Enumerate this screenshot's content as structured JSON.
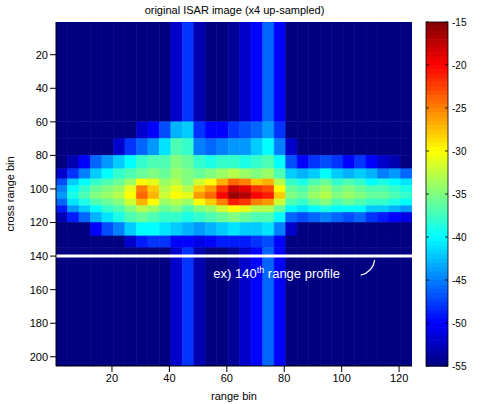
{
  "chart_data": {
    "type": "heatmap",
    "title": "original ISAR image (x4 up-sampled)",
    "x_label": "range bin",
    "y_label": "cross range bin",
    "xlim": [
      0.5,
      124.5
    ],
    "ylim": [
      0.5,
      205.5
    ],
    "xticks": [
      20,
      40,
      60,
      80,
      100,
      120
    ],
    "yticks": [
      20,
      40,
      60,
      80,
      100,
      120,
      140,
      160,
      180,
      200
    ],
    "x_edges": [
      0.5,
      4.5,
      8.5,
      12.5,
      16.5,
      20.5,
      24.5,
      28.5,
      32.5,
      36.5,
      40.5,
      44.5,
      48.5,
      52.5,
      56.5,
      60.5,
      64.5,
      68.5,
      72.5,
      76.5,
      80.5,
      84.5,
      88.5,
      92.5,
      96.5,
      100.5,
      104.5,
      108.5,
      112.5,
      116.5,
      120.5,
      124.5
    ],
    "y_edges": [
      0.5,
      60,
      70,
      80,
      88,
      94,
      98,
      102,
      106,
      110,
      114,
      120,
      128,
      135,
      205.5
    ],
    "cells": [
      [
        -55,
        -55,
        -55,
        -55,
        -55,
        -55,
        -55,
        -55,
        -55,
        -55,
        -52,
        -48,
        -53,
        -55,
        -55,
        -54,
        -52,
        -50,
        -46,
        -50,
        -55,
        -55,
        -55,
        -55,
        -55,
        -55,
        -55,
        -55,
        -55,
        -55,
        -55
      ],
      [
        -55,
        -55,
        -55,
        -55,
        -55,
        -55,
        -55,
        -52,
        -50,
        -47,
        -43,
        -42,
        -48,
        -50,
        -50,
        -48,
        -47,
        -46,
        -44,
        -48,
        -55,
        -55,
        -55,
        -55,
        -55,
        -55,
        -55,
        -55,
        -55,
        -55,
        -55
      ],
      [
        -55,
        -55,
        -55,
        -55,
        -55,
        -52,
        -48,
        -46,
        -44,
        -41,
        -37,
        -38,
        -45,
        -46,
        -45,
        -44,
        -44,
        -42,
        -40,
        -45,
        -52,
        -55,
        -55,
        -55,
        -55,
        -55,
        -55,
        -55,
        -55,
        -55,
        -55
      ],
      [
        -55,
        -53,
        -50,
        -46,
        -44,
        -42,
        -40,
        -38,
        -37,
        -37,
        -35,
        -36,
        -38,
        -39,
        -38,
        -38,
        -39,
        -38,
        -37,
        -40,
        -47,
        -50,
        -48,
        -47,
        -48,
        -50,
        -48,
        -50,
        -52,
        -53,
        -55
      ],
      [
        -52,
        -48,
        -45,
        -42,
        -40,
        -38,
        -37,
        -36,
        -35,
        -36,
        -34,
        -35,
        -36,
        -35,
        -34,
        -33,
        -34,
        -35,
        -34,
        -37,
        -42,
        -43,
        -42,
        -40,
        -42,
        -43,
        -42,
        -43,
        -45,
        -44,
        -46
      ],
      [
        -47,
        -42,
        -40,
        -38,
        -37,
        -36,
        -34,
        -30,
        -31,
        -34,
        -33,
        -35,
        -32,
        -30,
        -27,
        -24,
        -25,
        -28,
        -27,
        -33,
        -38,
        -39,
        -37,
        -36,
        -38,
        -37,
        -38,
        -40,
        -39,
        -40,
        -41
      ],
      [
        -45,
        -40,
        -38,
        -36,
        -35,
        -34,
        -31,
        -25,
        -28,
        -33,
        -31,
        -33,
        -28,
        -26,
        -22,
        -18,
        -19,
        -22,
        -23,
        -30,
        -36,
        -37,
        -35,
        -34,
        -36,
        -35,
        -36,
        -37,
        -37,
        -38,
        -39
      ],
      [
        -44,
        -39,
        -37,
        -35,
        -34,
        -33,
        -30,
        -24,
        -27,
        -32,
        -30,
        -31,
        -26,
        -24,
        -20,
        -16,
        -17,
        -20,
        -21,
        -28,
        -35,
        -36,
        -34,
        -33,
        -35,
        -34,
        -35,
        -36,
        -36,
        -37,
        -38
      ],
      [
        -46,
        -41,
        -39,
        -37,
        -36,
        -35,
        -32,
        -27,
        -30,
        -34,
        -33,
        -34,
        -30,
        -28,
        -25,
        -21,
        -22,
        -25,
        -26,
        -32,
        -37,
        -38,
        -36,
        -35,
        -37,
        -36,
        -37,
        -38,
        -38,
        -39,
        -40
      ],
      [
        -49,
        -44,
        -42,
        -40,
        -38,
        -37,
        -35,
        -33,
        -34,
        -36,
        -35,
        -37,
        -35,
        -34,
        -32,
        -30,
        -31,
        -33,
        -33,
        -36,
        -40,
        -41,
        -40,
        -39,
        -40,
        -40,
        -40,
        -42,
        -42,
        -43,
        -44
      ],
      [
        -53,
        -49,
        -46,
        -43,
        -41,
        -39,
        -37,
        -36,
        -37,
        -38,
        -38,
        -39,
        -38,
        -37,
        -36,
        -35,
        -36,
        -37,
        -37,
        -40,
        -46,
        -47,
        -46,
        -45,
        -46,
        -47,
        -46,
        -48,
        -49,
        -50,
        -51
      ],
      [
        -55,
        -55,
        -55,
        -50,
        -47,
        -45,
        -42,
        -40,
        -40,
        -41,
        -42,
        -43,
        -44,
        -43,
        -42,
        -41,
        -42,
        -42,
        -41,
        -45,
        -52,
        -55,
        -55,
        -55,
        -55,
        -55,
        -55,
        -55,
        -55,
        -55,
        -55
      ],
      [
        -55,
        -55,
        -55,
        -55,
        -55,
        -55,
        -52,
        -49,
        -48,
        -48,
        -50,
        -50,
        -51,
        -50,
        -49,
        -49,
        -49,
        -48,
        -47,
        -50,
        -55,
        -55,
        -55,
        -55,
        -55,
        -55,
        -55,
        -55,
        -55,
        -55,
        -55
      ],
      [
        -55,
        -55,
        -55,
        -55,
        -55,
        -55,
        -55,
        -55,
        -55,
        -55,
        -52,
        -48,
        -53,
        -55,
        -55,
        -54,
        -52,
        -50,
        -46,
        -50,
        -55,
        -55,
        -55,
        -55,
        -55,
        -55,
        -55,
        -55,
        -55,
        -55,
        -55
      ]
    ],
    "colorbar": {
      "range": [
        -55,
        -15
      ],
      "ticks": [
        -55,
        -50,
        -45,
        -40,
        -35,
        -30,
        -25,
        -20,
        -15
      ]
    },
    "annotations": [
      {
        "text": "ex) 140th range profile",
        "y": 140,
        "color": "#ffffff"
      }
    ]
  }
}
